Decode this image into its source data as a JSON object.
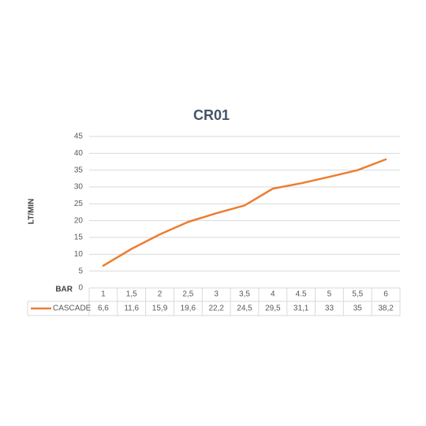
{
  "chart_data": {
    "type": "line",
    "title": "CR01",
    "x_label": "BAR",
    "y_label": "LT/MIN",
    "categories": [
      "1",
      "1,5",
      "2",
      "2,5",
      "3",
      "3,5",
      "4",
      "4.5",
      "5",
      "5,5",
      "6"
    ],
    "series": [
      {
        "name": "CASCADE",
        "color": "#ed7d31",
        "values": [
          6.6,
          11.6,
          15.9,
          19.6,
          22.2,
          24.5,
          29.5,
          31.1,
          33,
          35,
          38.2
        ],
        "value_labels": [
          "6,6",
          "11,6",
          "15,9",
          "19,6",
          "22,2",
          "24,5",
          "29,5",
          "31,1",
          "33",
          "35",
          "38,2"
        ]
      }
    ],
    "ylim": [
      0,
      45
    ],
    "yticks": [
      0,
      5,
      10,
      15,
      20,
      25,
      30,
      35,
      40,
      45
    ],
    "grid": true
  }
}
